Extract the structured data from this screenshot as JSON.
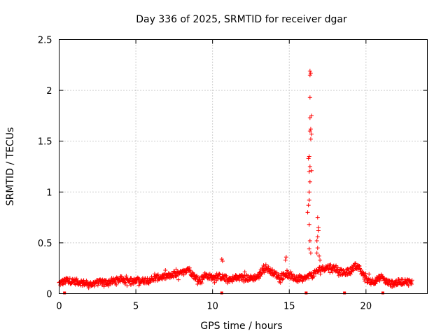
{
  "chart_data": {
    "type": "scatter",
    "title": "Day 336 of 2025, SRMTID for receiver dgar",
    "xlabel": "GPS time / hours",
    "ylabel": "SRMTID / TECUs",
    "xlim": [
      0,
      24
    ],
    "ylim": [
      0,
      2.5
    ],
    "xticks": [
      0,
      5,
      10,
      15,
      20
    ],
    "yticks": [
      0,
      0.5,
      1,
      1.5,
      2,
      2.5
    ],
    "xtick_labels": [
      "0",
      "5",
      "10",
      "15",
      "20"
    ],
    "ytick_labels": [
      "0",
      "0.5",
      "1",
      "1.5",
      "2",
      "2.5"
    ],
    "grid": true,
    "marker": "plus",
    "color": "#ff0000",
    "series": [
      {
        "name": "SRMTID",
        "baseline": [
          [
            0.0,
            0.1
          ],
          [
            0.5,
            0.13
          ],
          [
            1.0,
            0.12
          ],
          [
            1.5,
            0.11
          ],
          [
            2.0,
            0.09
          ],
          [
            2.5,
            0.11
          ],
          [
            3.0,
            0.11
          ],
          [
            3.5,
            0.12
          ],
          [
            4.0,
            0.14
          ],
          [
            4.5,
            0.13
          ],
          [
            5.0,
            0.12
          ],
          [
            5.5,
            0.13
          ],
          [
            6.0,
            0.14
          ],
          [
            6.5,
            0.16
          ],
          [
            7.0,
            0.17
          ],
          [
            7.5,
            0.18
          ],
          [
            8.0,
            0.2
          ],
          [
            8.4,
            0.25
          ],
          [
            8.8,
            0.17
          ],
          [
            9.2,
            0.13
          ],
          [
            9.5,
            0.18
          ],
          [
            10.0,
            0.16
          ],
          [
            10.5,
            0.17
          ],
          [
            11.0,
            0.14
          ],
          [
            11.5,
            0.15
          ],
          [
            12.0,
            0.16
          ],
          [
            12.5,
            0.15
          ],
          [
            13.0,
            0.17
          ],
          [
            13.4,
            0.27
          ],
          [
            13.8,
            0.22
          ],
          [
            14.2,
            0.18
          ],
          [
            14.5,
            0.16
          ],
          [
            14.8,
            0.2
          ],
          [
            15.0,
            0.17
          ],
          [
            15.5,
            0.14
          ],
          [
            16.0,
            0.15
          ],
          [
            16.5,
            0.18
          ],
          [
            17.0,
            0.24
          ],
          [
            17.5,
            0.26
          ],
          [
            18.0,
            0.25
          ],
          [
            18.5,
            0.2
          ],
          [
            19.0,
            0.22
          ],
          [
            19.3,
            0.28
          ],
          [
            19.6,
            0.24
          ],
          [
            20.0,
            0.14
          ],
          [
            20.5,
            0.12
          ],
          [
            21.0,
            0.16
          ],
          [
            21.3,
            0.12
          ],
          [
            21.6,
            0.1
          ],
          [
            22.0,
            0.11
          ],
          [
            22.5,
            0.12
          ],
          [
            23.0,
            0.11
          ]
        ],
        "outliers": [
          [
            10.6,
            0.34
          ],
          [
            10.65,
            0.32
          ],
          [
            14.8,
            0.36
          ],
          [
            14.75,
            0.33
          ],
          [
            16.2,
            0.8
          ],
          [
            16.25,
            0.87
          ],
          [
            16.3,
            0.92
          ],
          [
            16.3,
            1.0
          ],
          [
            16.35,
            1.1
          ],
          [
            16.3,
            1.2
          ],
          [
            16.35,
            1.25
          ],
          [
            16.25,
            1.33
          ],
          [
            16.3,
            1.35
          ],
          [
            16.45,
            1.21
          ],
          [
            16.4,
            1.52
          ],
          [
            16.45,
            1.57
          ],
          [
            16.35,
            1.6
          ],
          [
            16.4,
            1.62
          ],
          [
            16.35,
            1.73
          ],
          [
            16.45,
            1.75
          ],
          [
            16.35,
            1.93
          ],
          [
            16.35,
            2.15
          ],
          [
            16.4,
            2.17
          ],
          [
            16.35,
            2.19
          ],
          [
            16.3,
            0.68
          ],
          [
            16.35,
            0.52
          ],
          [
            16.3,
            0.44
          ],
          [
            16.4,
            0.4
          ],
          [
            16.8,
            0.4
          ],
          [
            16.85,
            0.45
          ],
          [
            16.8,
            0.52
          ],
          [
            16.85,
            0.56
          ],
          [
            16.9,
            0.62
          ],
          [
            16.9,
            0.65
          ],
          [
            16.85,
            0.75
          ],
          [
            16.95,
            0.37
          ],
          [
            17.0,
            0.33
          ]
        ],
        "gap_markers": [
          0.35,
          10.6,
          16.1,
          18.6,
          21.1
        ]
      }
    ]
  }
}
